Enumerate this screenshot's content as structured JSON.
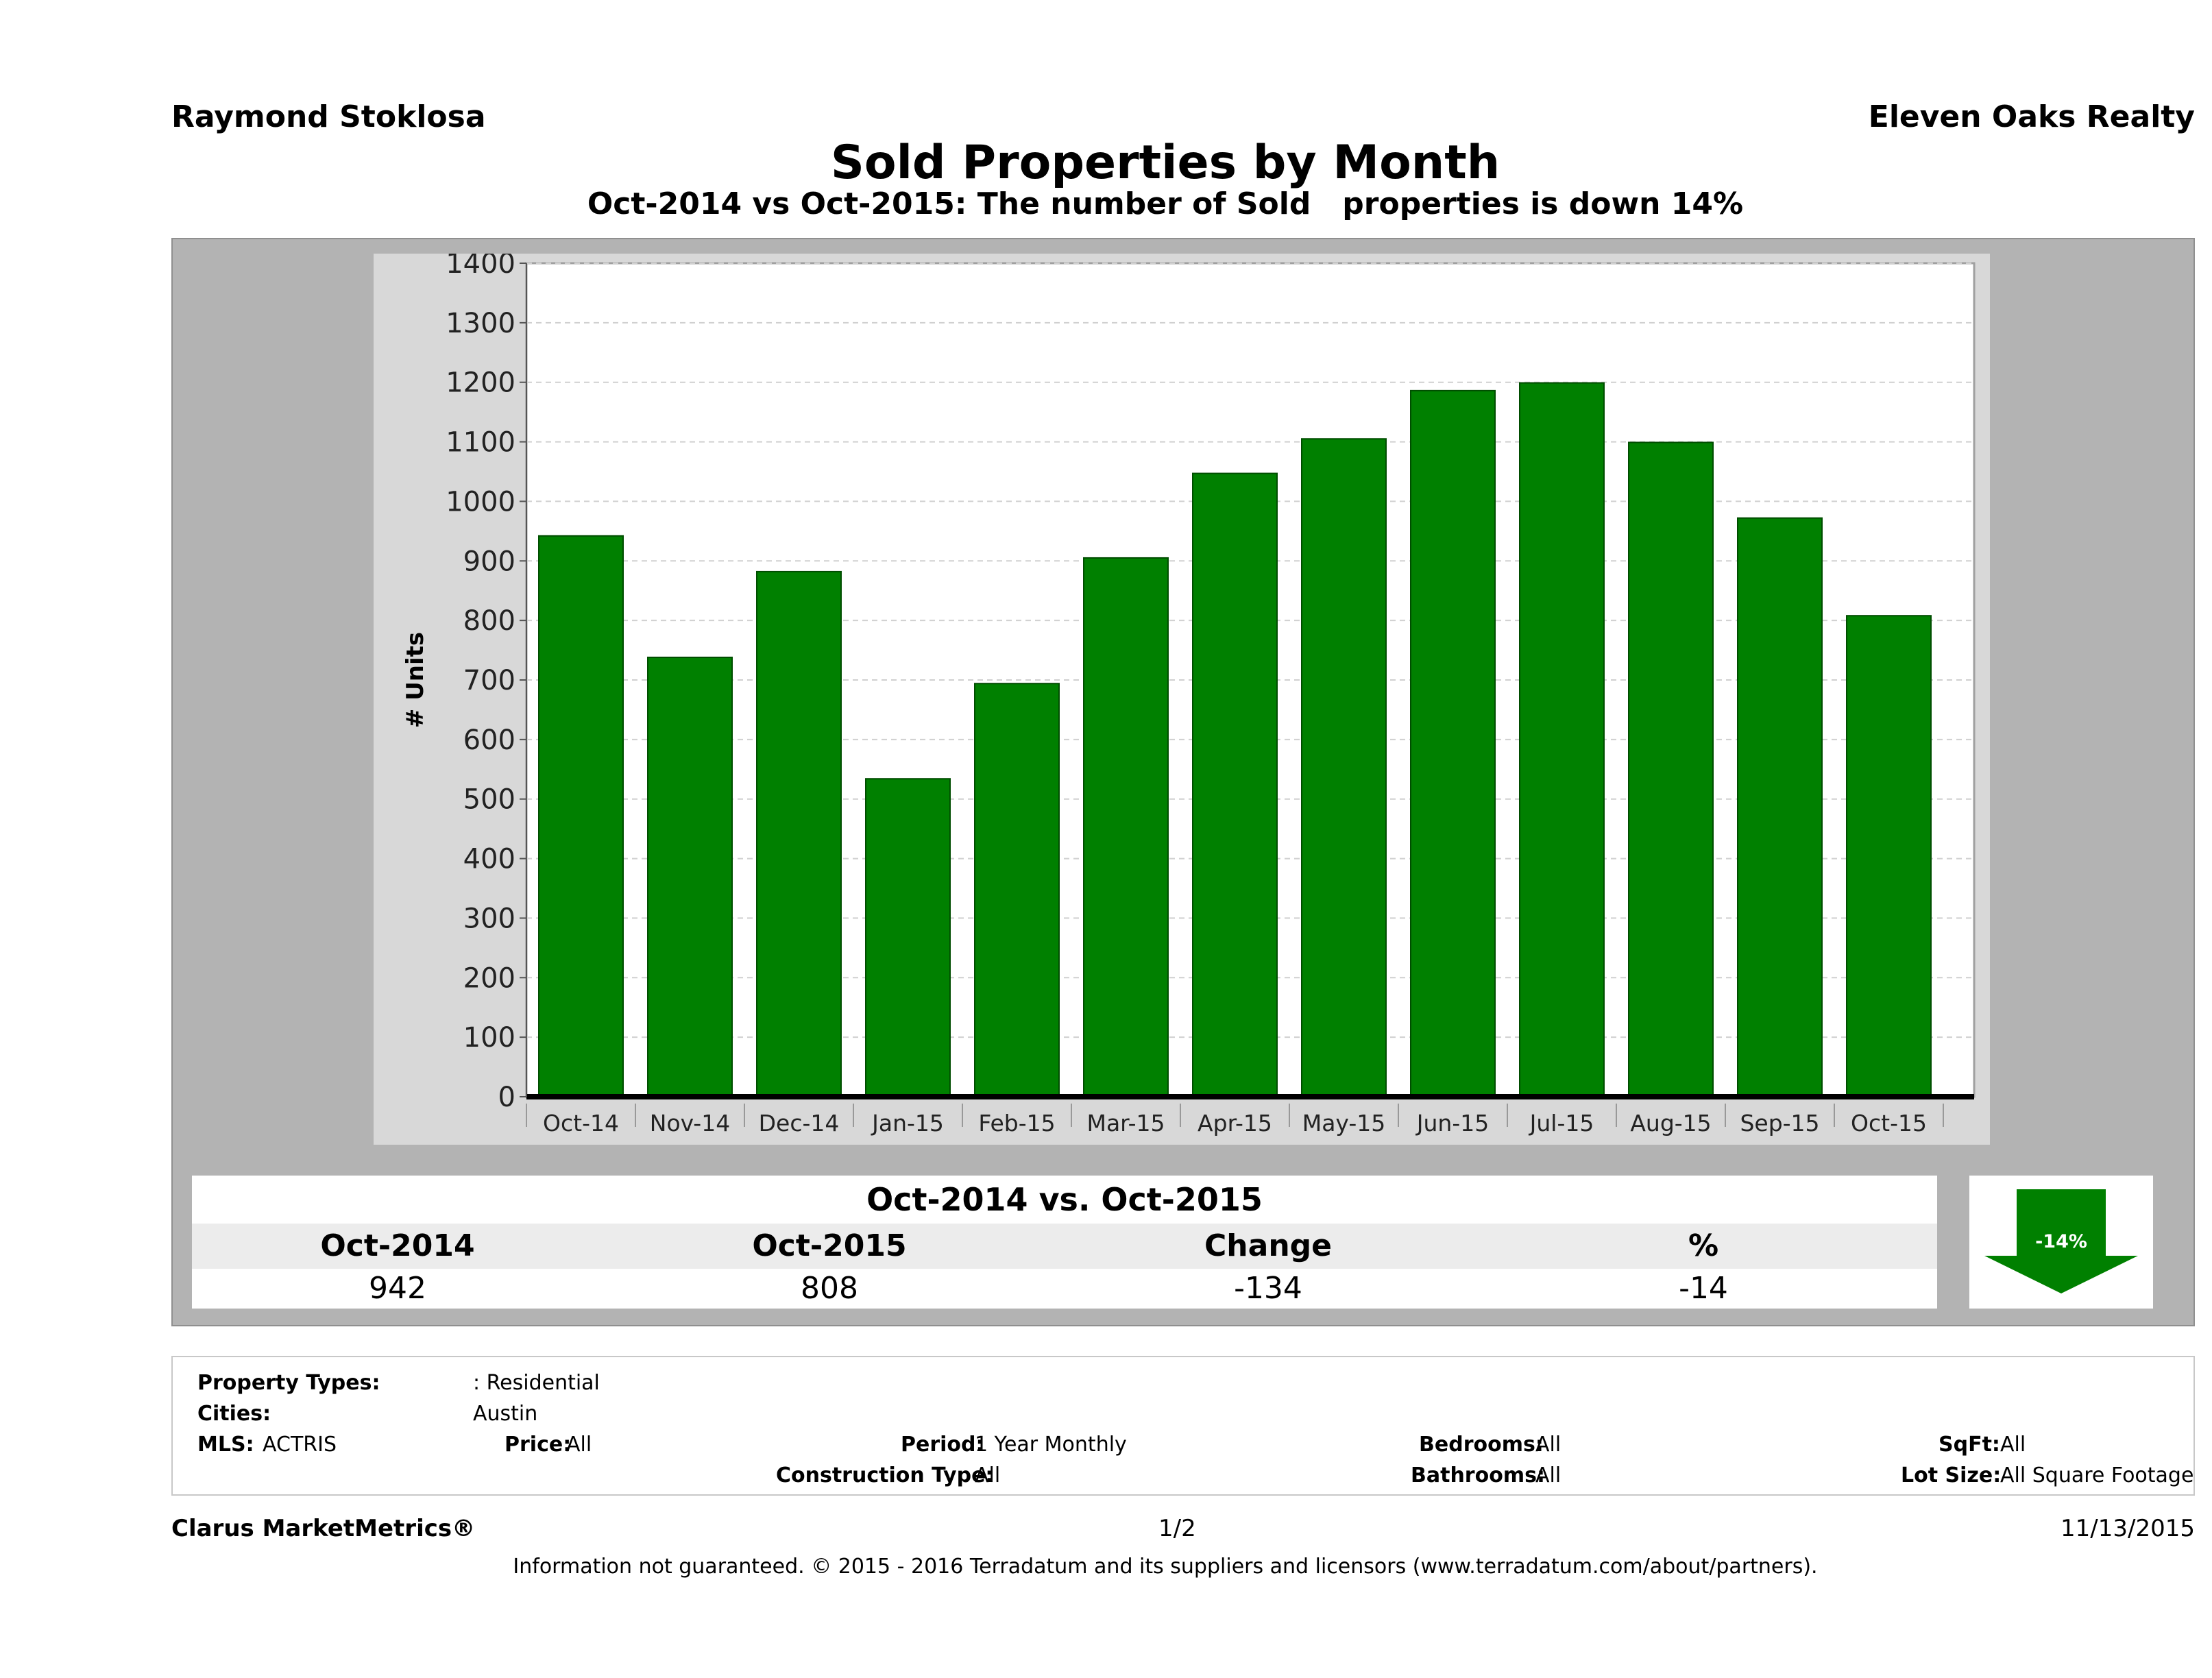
{
  "header": {
    "agent": "Raymond Stoklosa",
    "brokerage": "Eleven Oaks Realty",
    "title": "Sold Properties by Month",
    "subtitle": "Oct-2014 vs Oct-2015: The number of Sold   properties is down 14%"
  },
  "chart_data": {
    "type": "bar",
    "categories": [
      "Oct-14",
      "Nov-14",
      "Dec-14",
      "Jan-15",
      "Feb-15",
      "Mar-15",
      "Apr-15",
      "May-15",
      "Jun-15",
      "Jul-15",
      "Aug-15",
      "Sep-15",
      "Oct-15"
    ],
    "values": [
      942,
      738,
      882,
      534,
      694,
      905,
      1047,
      1105,
      1186,
      1199,
      1099,
      972,
      808
    ],
    "ylabel": "# Units",
    "ylim": [
      0,
      1400
    ],
    "yticks": [
      0,
      100,
      200,
      300,
      400,
      500,
      600,
      700,
      800,
      900,
      1000,
      1100,
      1200,
      1300,
      1400
    ],
    "bar_color": "#008000",
    "grid": true
  },
  "summary": {
    "title": "Oct-2014 vs. Oct-2015",
    "headers": [
      "Oct-2014",
      "Oct-2015",
      "Change",
      "%"
    ],
    "values": [
      "942",
      "808",
      "-134",
      "-14"
    ],
    "badge": "-14%",
    "badge_color": "#008000",
    "direction": "down"
  },
  "meta": {
    "property_types_label": "Property Types:",
    "property_types_value": ": Residential",
    "cities_label": "Cities:",
    "cities_value": "Austin",
    "mls_label": "MLS:",
    "mls_value": "ACTRIS",
    "price_label": "Price:",
    "price_value": "All",
    "period_label": "Period:",
    "period_value": "1 Year Monthly",
    "construction_label": "Construction Type:",
    "construction_value": "All",
    "bedrooms_label": "Bedrooms:",
    "bedrooms_value": "All",
    "bathrooms_label": "Bathrooms:",
    "bathrooms_value": "All",
    "sqft_label": "SqFt:",
    "sqft_value": "All",
    "lot_label": "Lot Size:",
    "lot_value": "All Square Footage"
  },
  "footer": {
    "brand": "Clarus MarketMetrics®",
    "page": "1/2",
    "date": "11/13/2015",
    "disclaimer": "Information not guaranteed. © 2015 - 2016 Terradatum and its suppliers and licensors (www.terradatum.com/about/partners)."
  }
}
